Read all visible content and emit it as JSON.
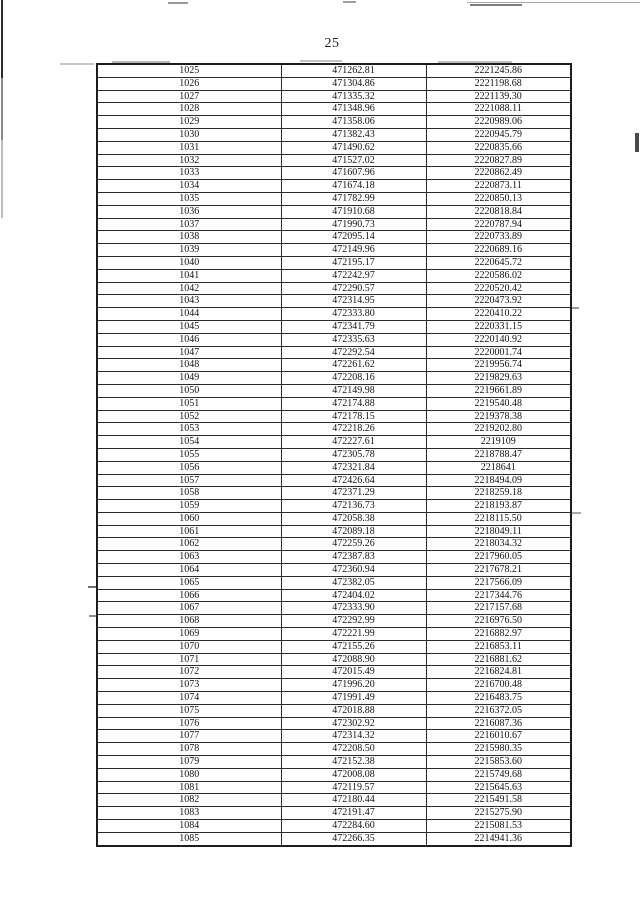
{
  "page": {
    "number": "25"
  },
  "table": {
    "rows": [
      [
        "1025",
        "471262.81",
        "2221245.86"
      ],
      [
        "1026",
        "471304.86",
        "2221198.68"
      ],
      [
        "1027",
        "471335.32",
        "2221139.30"
      ],
      [
        "1028",
        "471348.96",
        "2221088.11"
      ],
      [
        "1029",
        "471358.06",
        "2220989.06"
      ],
      [
        "1030",
        "471382.43",
        "2220945.79"
      ],
      [
        "1031",
        "471490.62",
        "2220835.66"
      ],
      [
        "1032",
        "471527.02",
        "2220827.89"
      ],
      [
        "1033",
        "471607.96",
        "2220862.49"
      ],
      [
        "1034",
        "471674.18",
        "2220873.11"
      ],
      [
        "1035",
        "471782.99",
        "2220850.13"
      ],
      [
        "1036",
        "471910.68",
        "2220818.84"
      ],
      [
        "1037",
        "471990.73",
        "2220787.94"
      ],
      [
        "1038",
        "472095.14",
        "2220733.89"
      ],
      [
        "1039",
        "472149.96",
        "2220689.16"
      ],
      [
        "1040",
        "472195.17",
        "2220645.72"
      ],
      [
        "1041",
        "472242.97",
        "2220586.02"
      ],
      [
        "1042",
        "472290.57",
        "2220520.42"
      ],
      [
        "1043",
        "472314.95",
        "2220473.92"
      ],
      [
        "1044",
        "472333.80",
        "2220410.22"
      ],
      [
        "1045",
        "472341.79",
        "2220331.15"
      ],
      [
        "1046",
        "472335.63",
        "2220140.92"
      ],
      [
        "1047",
        "472292.54",
        "2220001.74"
      ],
      [
        "1048",
        "472261.62",
        "2219956.74"
      ],
      [
        "1049",
        "472208.16",
        "2219829.63"
      ],
      [
        "1050",
        "472149.98",
        "2219661.89"
      ],
      [
        "1051",
        "472174.88",
        "2219540.48"
      ],
      [
        "1052",
        "472178.15",
        "2219378.38"
      ],
      [
        "1053",
        "472218.26",
        "2219202.80"
      ],
      [
        "1054",
        "472227.61",
        "2219109"
      ],
      [
        "1055",
        "472305.78",
        "2218788.47"
      ],
      [
        "1056",
        "472321.84",
        "2218641"
      ],
      [
        "1057",
        "472426.64",
        "2218494.09"
      ],
      [
        "1058",
        "472371.29",
        "2218259.18"
      ],
      [
        "1059",
        "472136.73",
        "2218193.87"
      ],
      [
        "1060",
        "472058.38",
        "2218115.50"
      ],
      [
        "1061",
        "472089.18",
        "2218049.11"
      ],
      [
        "1062",
        "472259.26",
        "2218034.32"
      ],
      [
        "1063",
        "472387.83",
        "2217960.05"
      ],
      [
        "1064",
        "472360.94",
        "2217678.21"
      ],
      [
        "1065",
        "472382.05",
        "2217566.09"
      ],
      [
        "1066",
        "472404.02",
        "2217344.76"
      ],
      [
        "1067",
        "472333.90",
        "2217157.68"
      ],
      [
        "1068",
        "472292.99",
        "2216976.50"
      ],
      [
        "1069",
        "472221.99",
        "2216882.97"
      ],
      [
        "1070",
        "472155.26",
        "2216853.11"
      ],
      [
        "1071",
        "472088.90",
        "2216881.62"
      ],
      [
        "1072",
        "472015.49",
        "2216824.81"
      ],
      [
        "1073",
        "471996.20",
        "2216700.48"
      ],
      [
        "1074",
        "471991.49",
        "2216483.75"
      ],
      [
        "1075",
        "472018.88",
        "2216372.05"
      ],
      [
        "1076",
        "472302.92",
        "2216087.36"
      ],
      [
        "1077",
        "472314.32",
        "2216010.67"
      ],
      [
        "1078",
        "472208.50",
        "2215980.35"
      ],
      [
        "1079",
        "472152.38",
        "2215853.60"
      ],
      [
        "1080",
        "472008.08",
        "2215749.68"
      ],
      [
        "1081",
        "472119.57",
        "2215645.63"
      ],
      [
        "1082",
        "472180.44",
        "2215491.58"
      ],
      [
        "1083",
        "472191.47",
        "2215275.90"
      ],
      [
        "1084",
        "472284.60",
        "2215081.53"
      ],
      [
        "1085",
        "472266.35",
        "2214941.36"
      ]
    ]
  }
}
